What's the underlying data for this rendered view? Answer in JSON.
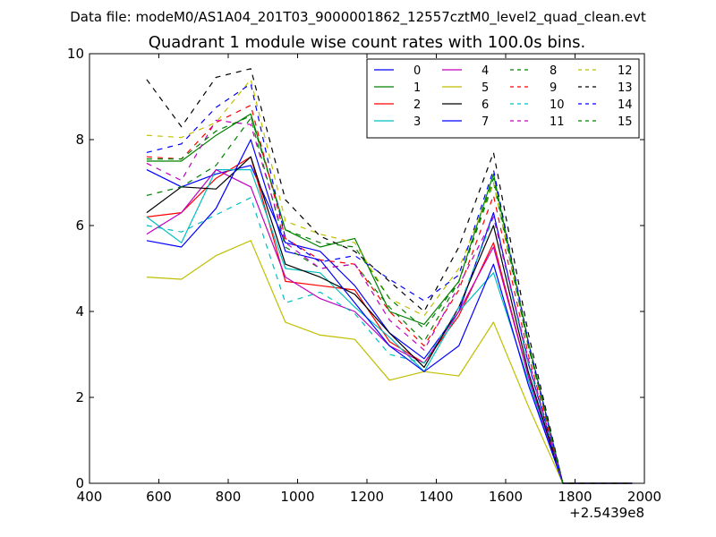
{
  "chart_data": {
    "type": "line",
    "suptitle": "Data file: modeM0/AS1A04_201T03_9000001862_12557cztM0_level2_quad_clean.evt",
    "title": "Quadrant 1 module wise count rates with 100.0s bins.",
    "xlabel": "",
    "ylabel": "",
    "x_offset_label": "+2.5439e8",
    "xlim": [
      400,
      2000
    ],
    "ylim": [
      0,
      10
    ],
    "x_ticks": [
      400,
      600,
      800,
      1000,
      1200,
      1400,
      1600,
      1800,
      2000
    ],
    "y_ticks": [
      0,
      2,
      4,
      6,
      8,
      10
    ],
    "x_tick_labels": [
      "400",
      "600",
      "800",
      "1000",
      "1200",
      "1400",
      "1600",
      "1800",
      "2000"
    ],
    "y_tick_labels": [
      "0",
      "2",
      "4",
      "6",
      "8",
      "10"
    ],
    "x": [
      565,
      665,
      765,
      865,
      965,
      1065,
      1165,
      1265,
      1365,
      1465,
      1565,
      1665,
      1765,
      1865,
      1965
    ],
    "legend": {
      "location": "upper-right",
      "columns": 4
    },
    "series": [
      {
        "name": "0",
        "color": "#0000ff",
        "dash": "solid",
        "values": [
          7.3,
          6.9,
          7.2,
          7.4,
          5.6,
          5.4,
          4.6,
          3.5,
          2.9,
          4.0,
          6.3,
          2.8,
          0.0,
          0.0,
          0.0
        ]
      },
      {
        "name": "1",
        "color": "#008000",
        "dash": "solid",
        "values": [
          7.5,
          7.5,
          8.1,
          8.6,
          5.9,
          5.5,
          5.7,
          4.0,
          3.7,
          4.7,
          7.2,
          3.3,
          0.0,
          0.0,
          0.0
        ]
      },
      {
        "name": "2",
        "color": "#ff0000",
        "dash": "solid",
        "values": [
          6.2,
          6.3,
          7.1,
          7.6,
          4.7,
          4.6,
          4.5,
          3.3,
          2.8,
          3.9,
          5.6,
          2.5,
          0.0,
          0.0,
          0.0
        ]
      },
      {
        "name": "3",
        "color": "#00bfbf",
        "dash": "solid",
        "values": [
          6.2,
          5.6,
          7.3,
          7.3,
          5.0,
          4.9,
          4.1,
          3.4,
          2.6,
          4.0,
          4.9,
          2.4,
          0.0,
          0.0,
          0.0
        ]
      },
      {
        "name": "4",
        "color": "#bf00bf",
        "dash": "solid",
        "values": [
          5.8,
          6.3,
          7.3,
          6.9,
          4.8,
          4.3,
          4.0,
          3.2,
          2.8,
          4.0,
          5.5,
          2.5,
          0.0,
          0.0,
          0.0
        ]
      },
      {
        "name": "5",
        "color": "#bfbf00",
        "dash": "solid",
        "values": [
          4.8,
          4.75,
          5.3,
          5.65,
          3.75,
          3.45,
          3.35,
          2.4,
          2.6,
          2.5,
          3.75,
          1.8,
          0.0,
          0.0,
          0.0
        ]
      },
      {
        "name": "6",
        "color": "#000000",
        "dash": "solid",
        "values": [
          6.3,
          6.9,
          6.85,
          7.6,
          5.1,
          4.8,
          4.4,
          3.5,
          2.7,
          4.1,
          6.0,
          2.6,
          0.0,
          0.0,
          0.0
        ]
      },
      {
        "name": "7",
        "color": "#0000ff",
        "dash": "solid",
        "values": [
          5.65,
          5.5,
          6.4,
          8.0,
          5.4,
          5.2,
          4.2,
          3.2,
          2.6,
          3.2,
          5.1,
          2.3,
          0.0,
          0.0,
          0.0
        ]
      },
      {
        "name": "8",
        "color": "#008000",
        "dash": "dashed",
        "values": [
          6.7,
          6.9,
          7.4,
          8.5,
          5.5,
          5.0,
          5.1,
          4.1,
          3.3,
          4.7,
          7.0,
          3.2,
          0.0,
          0.0,
          0.0
        ]
      },
      {
        "name": "9",
        "color": "#ff0000",
        "dash": "dashed",
        "values": [
          7.6,
          7.55,
          8.4,
          8.8,
          5.7,
          5.2,
          5.1,
          4.0,
          3.2,
          4.5,
          6.7,
          3.0,
          0.0,
          0.0,
          0.0
        ]
      },
      {
        "name": "10",
        "color": "#00bfbf",
        "dash": "dashed",
        "values": [
          6.0,
          5.85,
          6.25,
          6.65,
          4.2,
          4.45,
          3.95,
          3.0,
          2.8,
          4.1,
          6.2,
          2.8,
          0.0,
          0.0,
          0.0
        ]
      },
      {
        "name": "11",
        "color": "#bf00bf",
        "dash": "dashed",
        "values": [
          7.45,
          7.05,
          8.45,
          8.35,
          5.6,
          5.0,
          5.1,
          3.8,
          3.1,
          4.6,
          6.2,
          2.9,
          0.0,
          0.0,
          0.0
        ]
      },
      {
        "name": "12",
        "color": "#bfbf00",
        "dash": "dashed",
        "values": [
          8.1,
          8.05,
          8.4,
          9.4,
          6.1,
          5.8,
          5.6,
          4.3,
          3.9,
          5.0,
          7.0,
          3.3,
          0.0,
          0.0,
          0.0
        ]
      },
      {
        "name": "13",
        "color": "#000000",
        "dash": "dashed",
        "values": [
          9.4,
          8.3,
          9.45,
          9.65,
          6.6,
          5.75,
          5.4,
          4.7,
          4.0,
          5.5,
          7.7,
          3.5,
          0.0,
          0.0,
          0.0
        ]
      },
      {
        "name": "14",
        "color": "#0000ff",
        "dash": "dashed",
        "values": [
          7.7,
          7.9,
          8.75,
          9.3,
          5.7,
          5.15,
          5.3,
          4.75,
          4.25,
          4.85,
          7.3,
          3.3,
          0.0,
          0.0,
          0.0
        ]
      },
      {
        "name": "15",
        "color": "#008000",
        "dash": "dashed",
        "values": [
          7.55,
          7.55,
          8.2,
          8.55,
          5.9,
          5.6,
          5.5,
          4.3,
          3.6,
          4.7,
          7.1,
          3.2,
          0.0,
          0.0,
          0.0
        ]
      }
    ]
  }
}
